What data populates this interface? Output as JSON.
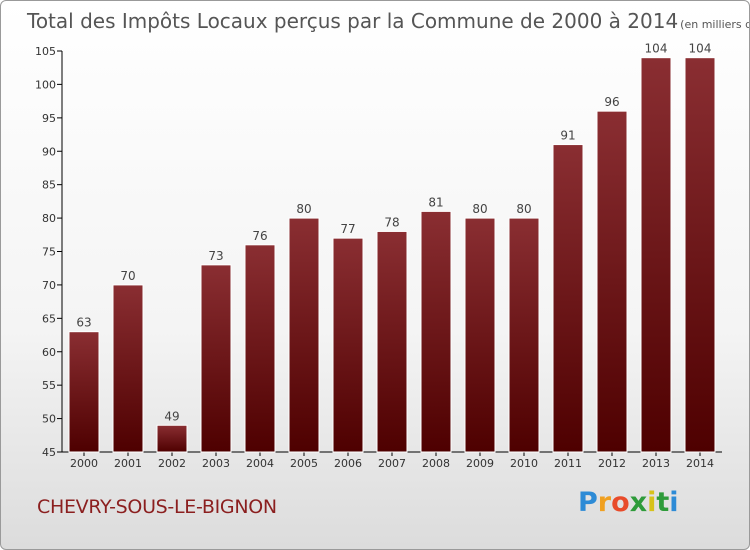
{
  "page": {
    "commune": "CHEVRY-SOUS-LE-BIGNON",
    "logo": {
      "letters": [
        "P",
        "r",
        "o",
        "x",
        "i",
        "t",
        "i"
      ],
      "colors": [
        "#2d8bd6",
        "#f0a020",
        "#e84b2a",
        "#2e9b3a",
        "#d7c21a",
        "#2e9b3a",
        "#2d8bd6"
      ]
    }
  },
  "chart_data": {
    "type": "bar",
    "title": "Total des Impôts Locaux perçus par la Commune de 2000 à 2014",
    "title_unit": "(en milliers d'€)",
    "categories": [
      "2000",
      "2001",
      "2002",
      "2003",
      "2004",
      "2005",
      "2006",
      "2007",
      "2008",
      "2009",
      "2010",
      "2011",
      "2012",
      "2013",
      "2014"
    ],
    "values": [
      63,
      70,
      49,
      73,
      76,
      80,
      77,
      78,
      81,
      80,
      80,
      91,
      96,
      104,
      104
    ],
    "data_labels": [
      "63",
      "70",
      "49",
      "73",
      "76",
      "80",
      "77",
      "78",
      "81",
      "80",
      "80",
      "91",
      "96",
      "104",
      "104"
    ],
    "ylim": [
      45,
      105
    ],
    "yticks": [
      45,
      50,
      55,
      60,
      65,
      70,
      75,
      80,
      85,
      90,
      95,
      100,
      105
    ],
    "ytick_labels": [
      "45",
      "50",
      "55",
      "60",
      "65",
      "70",
      "75",
      "80",
      "85",
      "90",
      "95",
      "100",
      "105"
    ],
    "grid": false,
    "legend": "none",
    "colors": {
      "bar_top": "#8a2e32",
      "bar_bottom": "#4e0000",
      "axis": "#000000"
    }
  }
}
